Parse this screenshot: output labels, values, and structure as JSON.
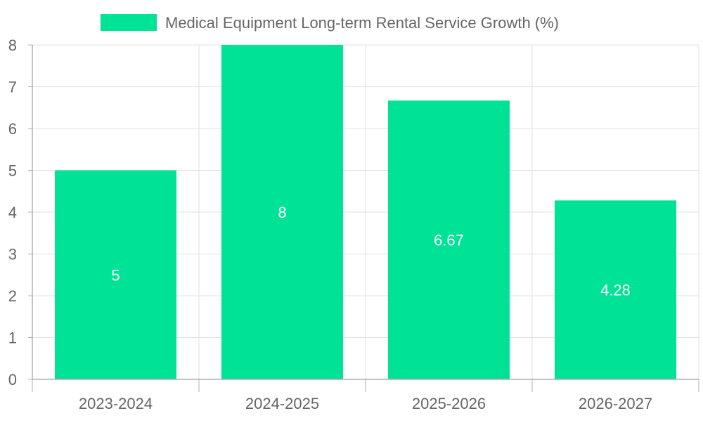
{
  "chart_data": {
    "type": "bar",
    "title": "",
    "xlabel": "",
    "ylabel": "",
    "legend_position": "top-center",
    "grid": true,
    "categories": [
      "2023-2024",
      "2024-2025",
      "2025-2026",
      "2026-2027"
    ],
    "series": [
      {
        "name": "Medical Equipment Long-term Rental Service Growth (%)",
        "values": [
          5,
          8,
          6.67,
          4.28
        ],
        "color": "#00E396",
        "data_labels": [
          "5",
          "8",
          "6.67",
          "4.28"
        ]
      }
    ],
    "ylim": [
      0,
      8
    ],
    "yticks": [
      "0",
      "1",
      "2",
      "3",
      "4",
      "5",
      "6",
      "7",
      "8"
    ]
  },
  "colors": {
    "grid": "#e0e0e0",
    "axis": "#b0b0b0",
    "tick_text": "#666666",
    "legend_text": "#666666",
    "data_label": "#ffffff"
  }
}
